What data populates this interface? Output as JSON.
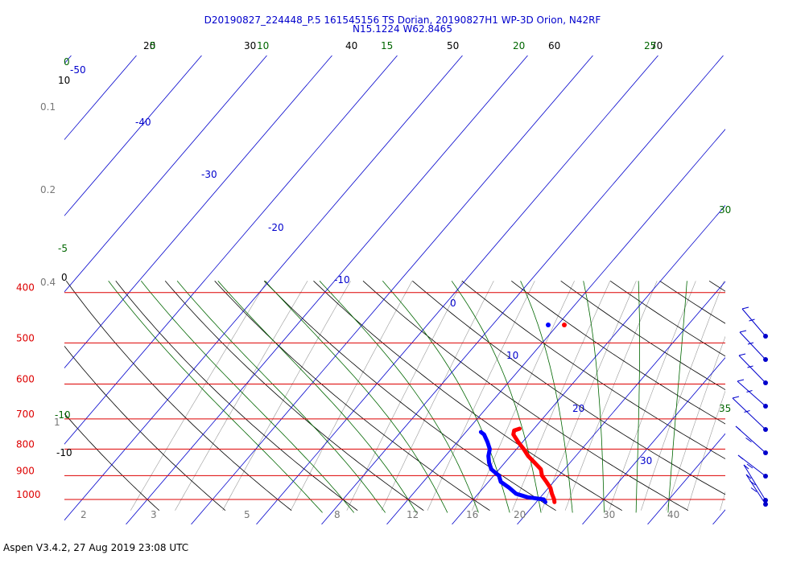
{
  "header": {
    "title_line1": "D20190827_224448_P.5 161545156 TS Dorian, 20190827H1 WP-3D Orion, N42RF",
    "title_line2": "N15.1224 W62.8465"
  },
  "footer": {
    "text": "Aspen V3.4.2, 27 Aug 2019  23:08 UTC"
  },
  "colors": {
    "isobar": "#dd0000",
    "isotherm": "#0000cc",
    "dry_adiabat": "#000000",
    "moist_adiabat": "#006600",
    "mixing_ratio": "#999999",
    "temperature_trace": "#ff0000",
    "dewpoint_trace": "#0000ff",
    "wind_barb": "#0000cc"
  },
  "chart_data": {
    "type": "line",
    "chart_kind": "skew-T log-P thermodynamic diagram",
    "y_axis": {
      "quantity": "pressure",
      "unit": "hPa",
      "scale": "log",
      "range": [
        1020,
        400
      ],
      "tick_labels": [
        "400",
        "500",
        "600",
        "700",
        "800",
        "900",
        "1000"
      ]
    },
    "x_axis": {
      "quantity": "temperature",
      "unit": "°C",
      "skewed": true
    },
    "isotherm_labels": [
      "-50",
      "-40",
      "-30",
      "-20",
      "-10",
      "0",
      "10",
      "20",
      "30"
    ],
    "dry_adiabat_labels_top": [
      "20",
      "30",
      "40",
      "50",
      "60",
      "70"
    ],
    "dry_adiabat_labels_left": [
      "10",
      "0",
      "-10"
    ],
    "moist_adiabat_labels_top": [
      "0",
      "5",
      "10",
      "15",
      "20",
      "25"
    ],
    "moist_adiabat_labels_left": [
      "0",
      "-5",
      "-10"
    ],
    "moist_adiabat_labels_right": [
      "30",
      "35"
    ],
    "mixing_ratio_labels_bottom": [
      "2",
      "3",
      "5",
      "8",
      "12",
      "16",
      "20",
      "30",
      "40"
    ],
    "mixing_ratio_labels_left": [
      "0.1",
      "0.2",
      "0.4",
      "1"
    ],
    "series": [
      {
        "name": "Temperature",
        "unit": "°C",
        "points": [
          {
            "p": 1012,
            "t": 22.8
          },
          {
            "p": 1000,
            "t": 22.4
          },
          {
            "p": 975,
            "t": 21.3
          },
          {
            "p": 950,
            "t": 20.3
          },
          {
            "p": 925,
            "t": 18.9
          },
          {
            "p": 900,
            "t": 17.4
          },
          {
            "p": 875,
            "t": 16.4
          },
          {
            "p": 850,
            "t": 14.6
          },
          {
            "p": 825,
            "t": 12.7
          },
          {
            "p": 800,
            "t": 11.1
          },
          {
            "p": 775,
            "t": 9.3
          },
          {
            "p": 750,
            "t": 7.6
          },
          {
            "p": 737,
            "t": 7.2
          },
          {
            "p": 731,
            "t": 7.8
          }
        ]
      },
      {
        "name": "Dew point",
        "unit": "°C",
        "points": [
          {
            "p": 1012,
            "t": 21.4
          },
          {
            "p": 1000,
            "t": 20.8
          },
          {
            "p": 990,
            "t": 18.0
          },
          {
            "p": 975,
            "t": 15.8
          },
          {
            "p": 950,
            "t": 14.0
          },
          {
            "p": 925,
            "t": 11.9
          },
          {
            "p": 900,
            "t": 10.8
          },
          {
            "p": 875,
            "t": 8.8
          },
          {
            "p": 850,
            "t": 7.6
          },
          {
            "p": 825,
            "t": 6.6
          },
          {
            "p": 800,
            "t": 5.9
          },
          {
            "p": 775,
            "t": 4.6
          },
          {
            "p": 750,
            "t": 3.1
          },
          {
            "p": 742,
            "t": 2.3
          }
        ]
      }
    ],
    "wind_barb_count": 9
  }
}
